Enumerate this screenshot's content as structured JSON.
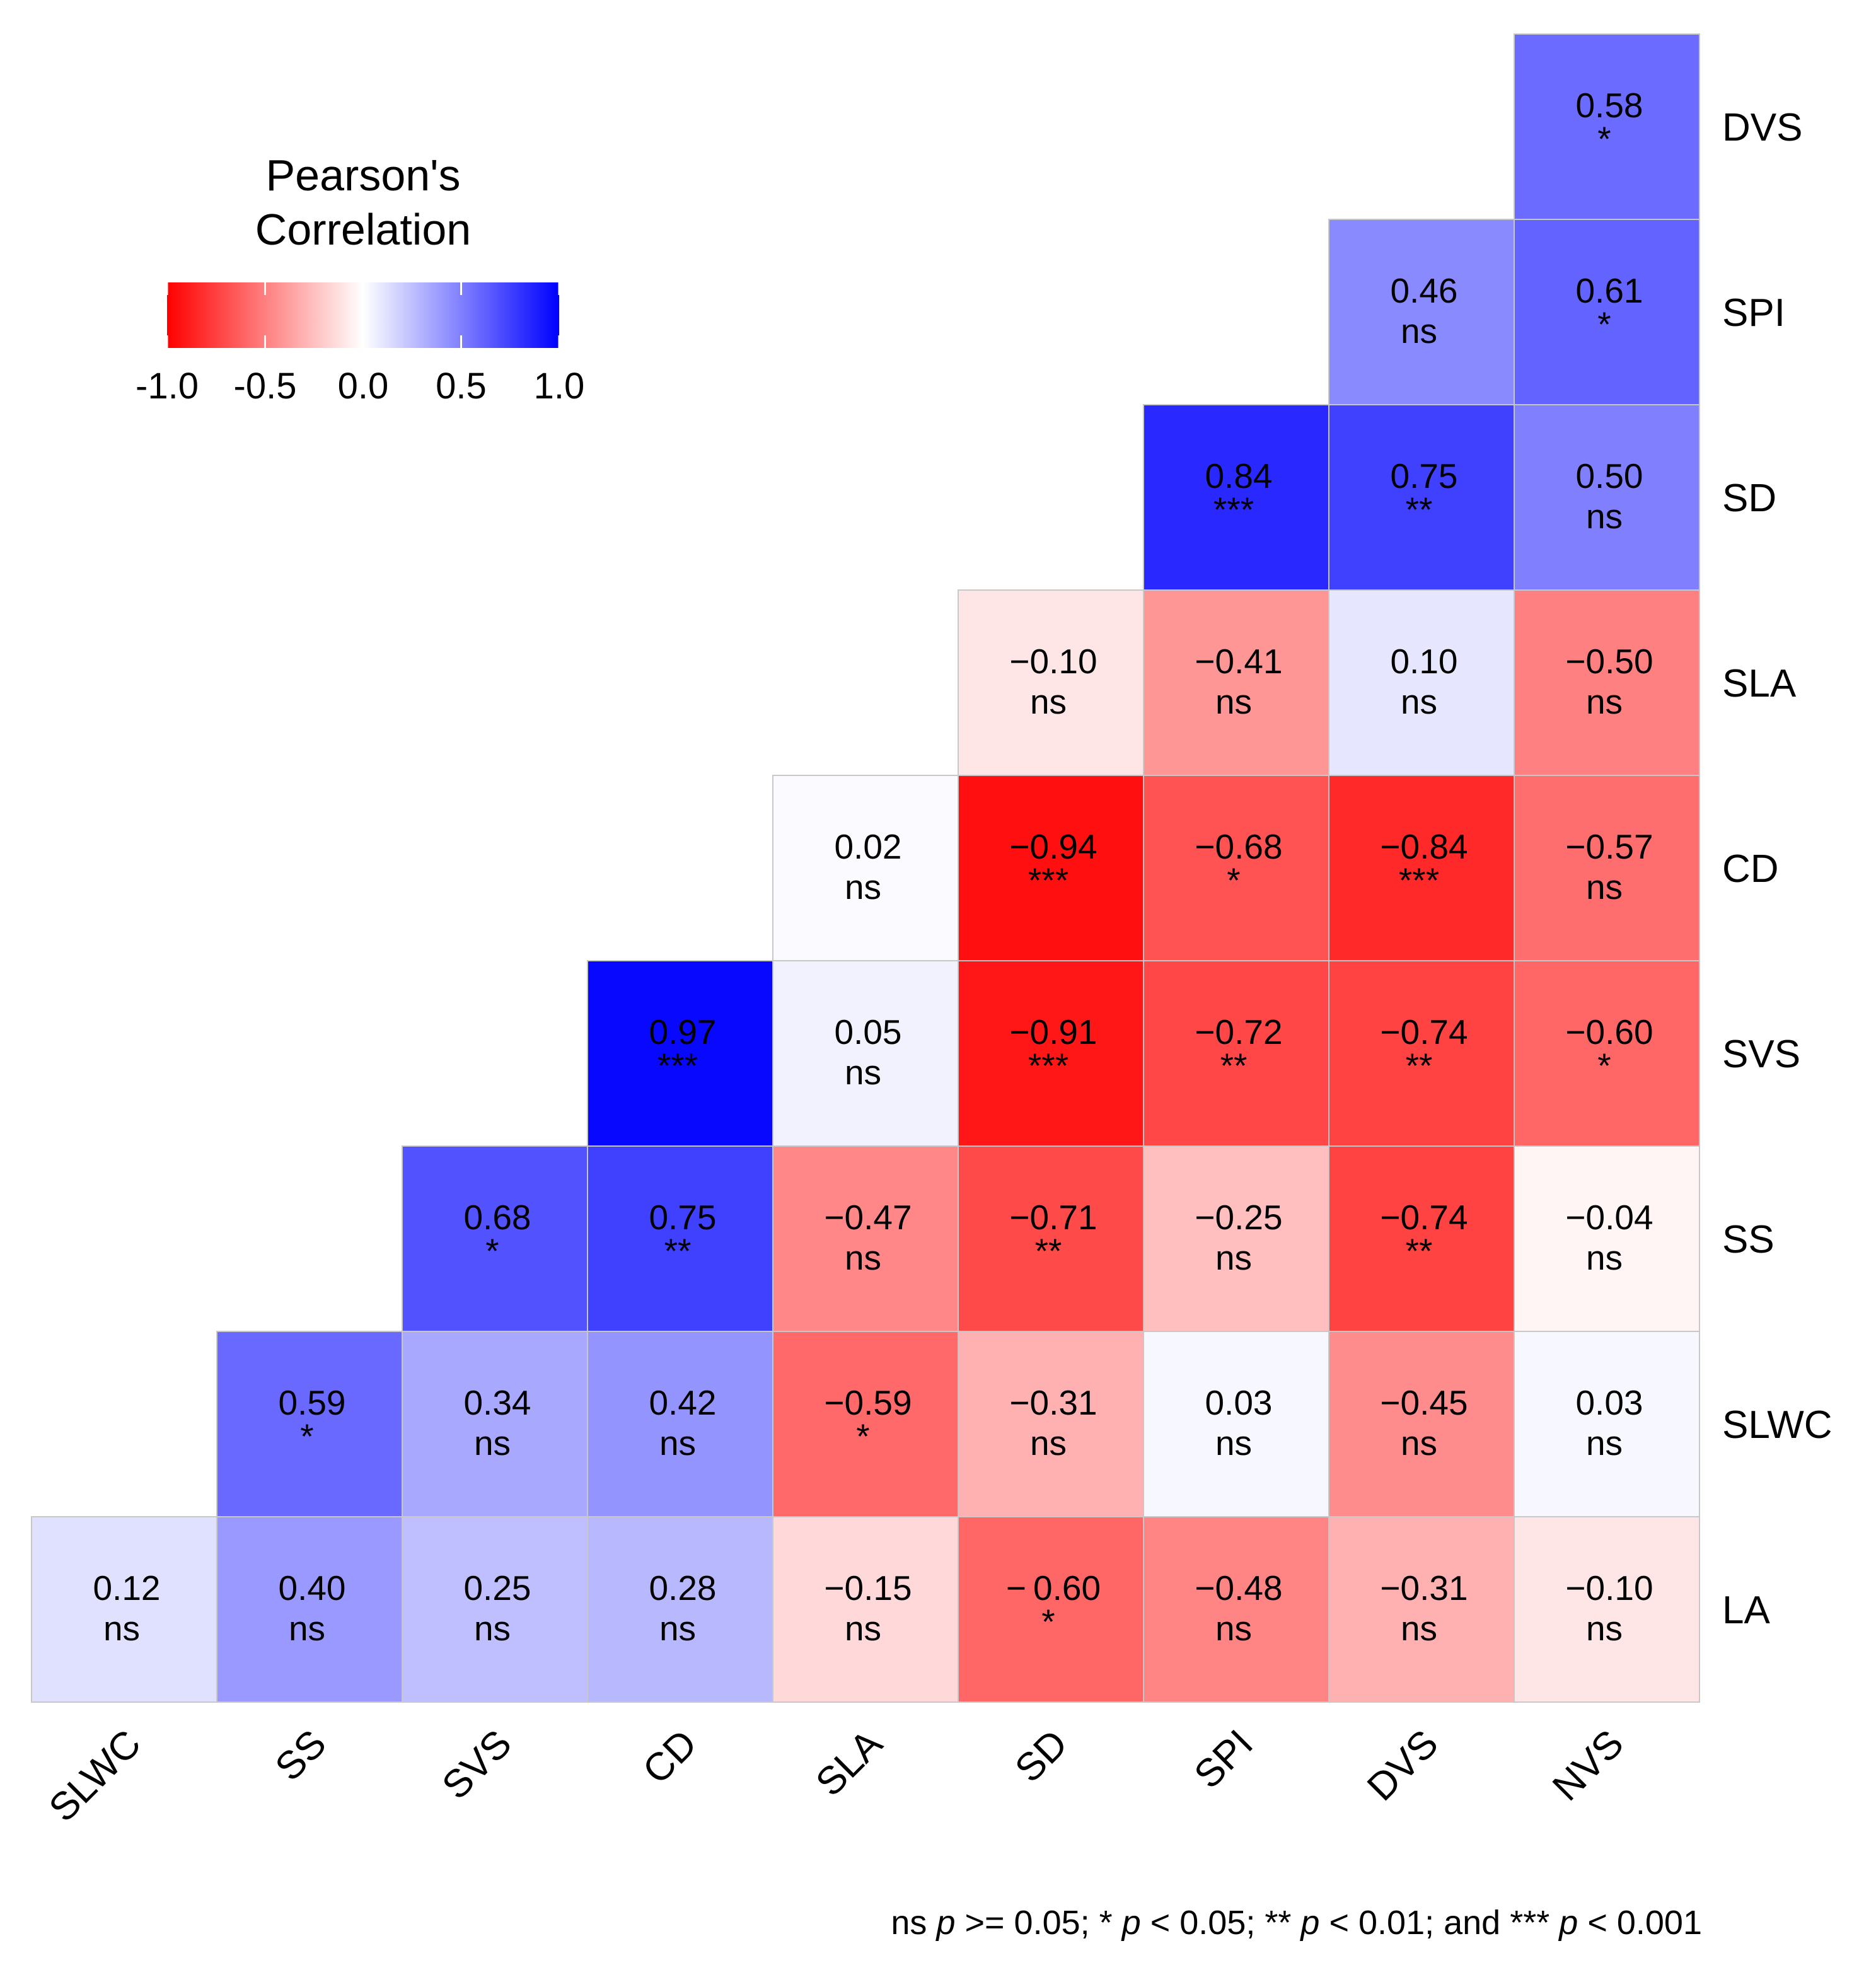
{
  "chart_data": {
    "type": "heatmap",
    "title": "",
    "legend": {
      "title_line1": "Pearson's",
      "title_line2": "Correlation",
      "ticks": [
        "-1.0",
        "-0.5",
        "0.0",
        "0.5",
        "1.0"
      ],
      "tick_values": [
        -1.0,
        -0.5,
        0.0,
        0.5,
        1.0
      ],
      "placement": "top-left"
    },
    "x_labels": [
      "SLWC",
      "SS",
      "SVS",
      "CD",
      "SLA",
      "SD",
      "SPI",
      "DVS",
      "NVS"
    ],
    "y_labels": [
      "DVS",
      "SPI",
      "SD",
      "SLA",
      "CD",
      "SVS",
      "SS",
      "SLWC",
      "LA"
    ],
    "cells": [
      {
        "row": 0,
        "col": 8,
        "value": 0.58,
        "label": "0.58",
        "sig": "*"
      },
      {
        "row": 1,
        "col": 7,
        "value": 0.46,
        "label": "0.46",
        "sig": "ns"
      },
      {
        "row": 1,
        "col": 8,
        "value": 0.61,
        "label": "0.61",
        "sig": "*"
      },
      {
        "row": 2,
        "col": 6,
        "value": 0.84,
        "label": "0.84",
        "sig": "***"
      },
      {
        "row": 2,
        "col": 7,
        "value": 0.75,
        "label": "0.75",
        "sig": "**"
      },
      {
        "row": 2,
        "col": 8,
        "value": 0.5,
        "label": "0.50",
        "sig": "ns"
      },
      {
        "row": 3,
        "col": 5,
        "value": -0.1,
        "label": "−0.10",
        "sig": "ns"
      },
      {
        "row": 3,
        "col": 6,
        "value": -0.41,
        "label": "−0.41",
        "sig": "ns"
      },
      {
        "row": 3,
        "col": 7,
        "value": 0.1,
        "label": "0.10",
        "sig": "ns"
      },
      {
        "row": 3,
        "col": 8,
        "value": -0.5,
        "label": "−0.50",
        "sig": "ns"
      },
      {
        "row": 4,
        "col": 4,
        "value": 0.02,
        "label": "0.02",
        "sig": "ns"
      },
      {
        "row": 4,
        "col": 5,
        "value": -0.94,
        "label": "−0.94",
        "sig": "***"
      },
      {
        "row": 4,
        "col": 6,
        "value": -0.68,
        "label": "−0.68",
        "sig": "*"
      },
      {
        "row": 4,
        "col": 7,
        "value": -0.84,
        "label": "−0.84",
        "sig": "***"
      },
      {
        "row": 4,
        "col": 8,
        "value": -0.57,
        "label": "−0.57",
        "sig": "ns"
      },
      {
        "row": 5,
        "col": 3,
        "value": 0.97,
        "label": "0.97",
        "sig": "***"
      },
      {
        "row": 5,
        "col": 4,
        "value": 0.05,
        "label": "0.05",
        "sig": "ns"
      },
      {
        "row": 5,
        "col": 5,
        "value": -0.91,
        "label": "−0.91",
        "sig": "***"
      },
      {
        "row": 5,
        "col": 6,
        "value": -0.72,
        "label": "−0.72",
        "sig": "**"
      },
      {
        "row": 5,
        "col": 7,
        "value": -0.74,
        "label": "−0.74",
        "sig": "**"
      },
      {
        "row": 5,
        "col": 8,
        "value": -0.6,
        "label": "−0.60",
        "sig": "*"
      },
      {
        "row": 6,
        "col": 2,
        "value": 0.68,
        "label": "0.68",
        "sig": "*"
      },
      {
        "row": 6,
        "col": 3,
        "value": 0.75,
        "label": "0.75",
        "sig": "**"
      },
      {
        "row": 6,
        "col": 4,
        "value": -0.47,
        "label": "−0.47",
        "sig": "ns"
      },
      {
        "row": 6,
        "col": 5,
        "value": -0.71,
        "label": "−0.71",
        "sig": "**"
      },
      {
        "row": 6,
        "col": 6,
        "value": -0.25,
        "label": "−0.25",
        "sig": "ns"
      },
      {
        "row": 6,
        "col": 7,
        "value": -0.74,
        "label": "−0.74",
        "sig": "**"
      },
      {
        "row": 6,
        "col": 8,
        "value": -0.04,
        "label": "−0.04",
        "sig": "ns"
      },
      {
        "row": 7,
        "col": 1,
        "value": 0.59,
        "label": "0.59",
        "sig": "*"
      },
      {
        "row": 7,
        "col": 2,
        "value": 0.34,
        "label": "0.34",
        "sig": "ns"
      },
      {
        "row": 7,
        "col": 3,
        "value": 0.42,
        "label": "0.42",
        "sig": "ns"
      },
      {
        "row": 7,
        "col": 4,
        "value": -0.59,
        "label": "−0.59",
        "sig": "*"
      },
      {
        "row": 7,
        "col": 5,
        "value": -0.31,
        "label": "−0.31",
        "sig": "ns"
      },
      {
        "row": 7,
        "col": 6,
        "value": 0.03,
        "label": "0.03",
        "sig": "ns"
      },
      {
        "row": 7,
        "col": 7,
        "value": -0.45,
        "label": "−0.45",
        "sig": "ns"
      },
      {
        "row": 7,
        "col": 8,
        "value": 0.03,
        "label": "0.03",
        "sig": "ns"
      },
      {
        "row": 8,
        "col": 0,
        "value": 0.12,
        "label": "0.12",
        "sig": "ns"
      },
      {
        "row": 8,
        "col": 1,
        "value": 0.4,
        "label": "0.40",
        "sig": "ns"
      },
      {
        "row": 8,
        "col": 2,
        "value": 0.25,
        "label": "0.25",
        "sig": "ns"
      },
      {
        "row": 8,
        "col": 3,
        "value": 0.28,
        "label": "0.28",
        "sig": "ns"
      },
      {
        "row": 8,
        "col": 4,
        "value": -0.15,
        "label": "−0.15",
        "sig": "ns"
      },
      {
        "row": 8,
        "col": 5,
        "value": -0.6,
        "label": "− 0.60",
        "sig": "*"
      },
      {
        "row": 8,
        "col": 6,
        "value": -0.48,
        "label": "−0.48",
        "sig": "ns"
      },
      {
        "row": 8,
        "col": 7,
        "value": -0.31,
        "label": "−0.31",
        "sig": "ns"
      },
      {
        "row": 8,
        "col": 8,
        "value": -0.1,
        "label": "−0.10",
        "sig": "ns"
      }
    ],
    "footnote": {
      "part1": "ns ",
      "p": "p",
      "part2": " >= 0.05; * ",
      "part3": " < 0.05; ** ",
      "part4": " < 0.01; and *** ",
      "part5": " < 0.001"
    },
    "colors": {
      "low": "#ff0000",
      "mid": "#ffffff",
      "high": "#0000ff",
      "cell_border": "#c8c8c8"
    }
  }
}
